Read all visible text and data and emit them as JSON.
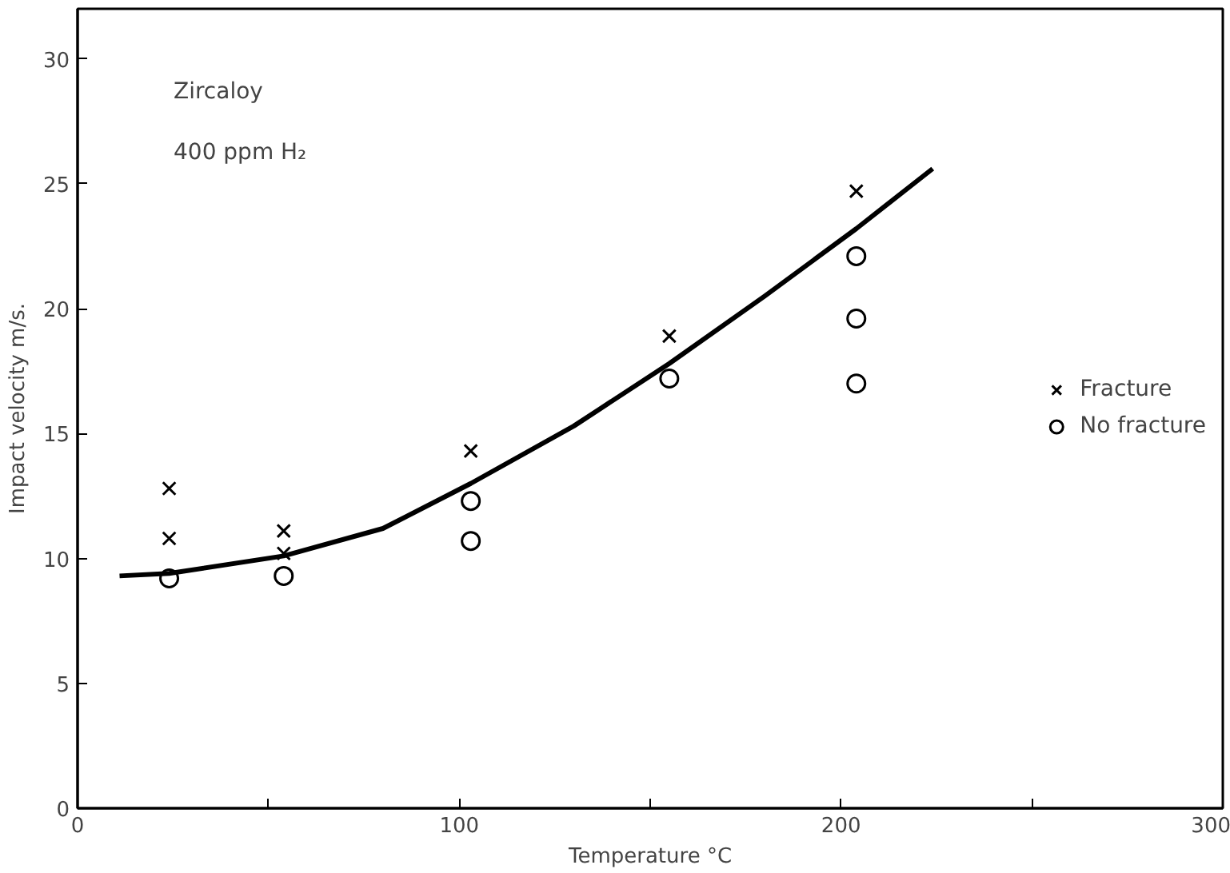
{
  "chart_data": {
    "type": "scatter",
    "xlabel": "Temperature °C",
    "ylabel": "Impact velocity m/s.",
    "annotations": [
      "Zircaloy",
      "400 ppm H₂"
    ],
    "xlim": [
      0,
      300
    ],
    "ylim": [
      0,
      32
    ],
    "xticks": [
      0,
      {
        "value": 50,
        "label": null
      },
      100,
      {
        "value": 150,
        "label": null
      },
      200,
      {
        "value": 250,
        "label": null
      },
      300
    ],
    "yticks": [
      0,
      5,
      10,
      15,
      20,
      25,
      30
    ],
    "grid": false,
    "legend": "right",
    "series": [
      {
        "name": "Fracture",
        "color": "#000000",
        "marker": "cross",
        "x": [
          24,
          24,
          54,
          54,
          103,
          155,
          204
        ],
        "values": [
          12.8,
          10.8,
          11.1,
          10.2,
          14.3,
          18.9,
          24.7
        ]
      },
      {
        "name": "No fracture",
        "color": "#000000",
        "marker": "circle",
        "x": [
          24,
          54,
          103,
          103,
          155,
          204,
          204,
          204
        ],
        "values": [
          9.2,
          9.3,
          12.3,
          10.7,
          17.2,
          22.1,
          19.6,
          17.0
        ]
      },
      {
        "type": "line",
        "color": "#000000",
        "marker": "none",
        "line_style": "solid",
        "x": [
          11,
          24,
          54,
          80,
          103,
          130,
          155,
          180,
          204,
          224
        ],
        "values": [
          9.3,
          9.4,
          10.1,
          11.2,
          13.0,
          15.3,
          17.8,
          20.5,
          23.2,
          25.6
        ]
      }
    ]
  }
}
